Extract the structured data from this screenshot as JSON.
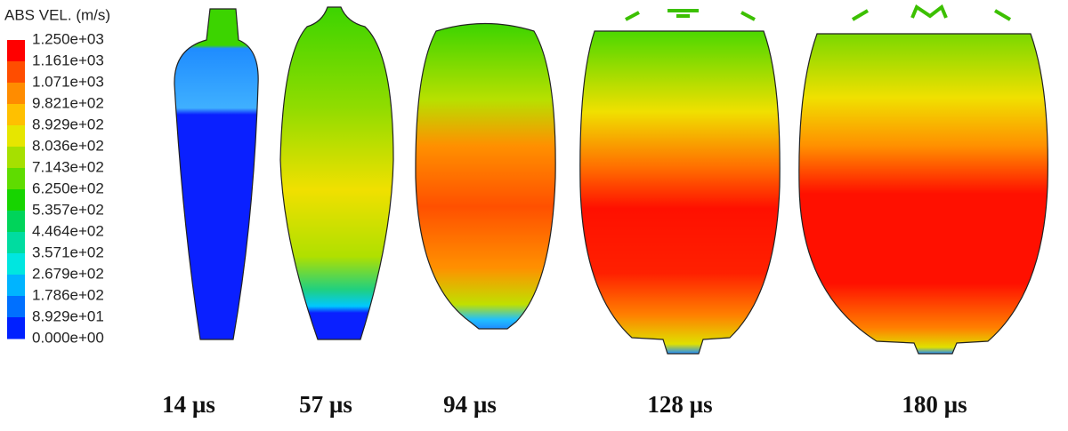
{
  "legend": {
    "title": "ABS VEL. (m/s)",
    "labels": [
      "1.250e+03",
      "1.161e+03",
      "1.071e+03",
      "9.821e+02",
      "8.929e+02",
      "8.036e+02",
      "7.143e+02",
      "6.250e+02",
      "5.357e+02",
      "4.464e+02",
      "3.571e+02",
      "2.679e+02",
      "1.786e+02",
      "8.929e+01",
      "0.000e+00"
    ],
    "colors": [
      "#ff0000",
      "#ff4d00",
      "#ff8c00",
      "#ffc000",
      "#e6e600",
      "#a6e000",
      "#5fdc00",
      "#17d400",
      "#00d45a",
      "#00dca0",
      "#00e6e0",
      "#00b4ff",
      "#0070ff",
      "#0020ff"
    ]
  },
  "frames": [
    "14 µs",
    "57 µs",
    "94 µs",
    "128 µs",
    "180 µs"
  ]
}
